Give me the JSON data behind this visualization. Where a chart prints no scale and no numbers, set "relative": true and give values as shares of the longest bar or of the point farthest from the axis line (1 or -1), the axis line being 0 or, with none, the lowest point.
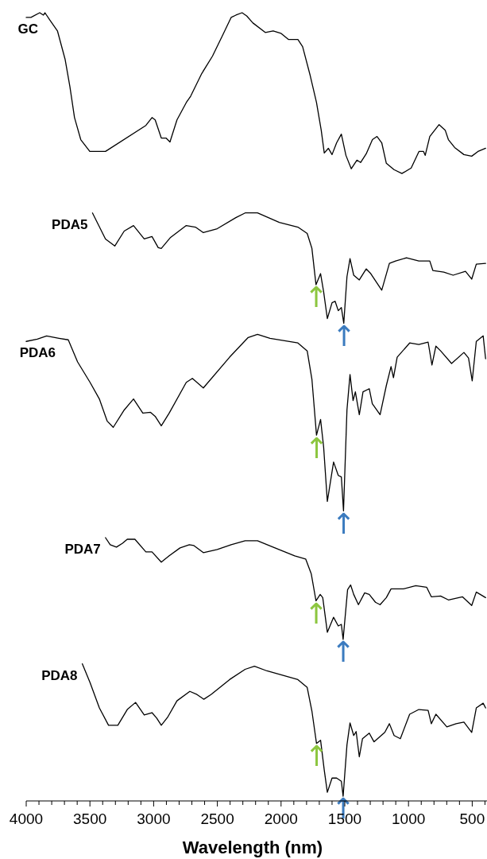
{
  "chart_data": {
    "type": "line",
    "relative": true,
    "xlabel": "Wavelength (nm)",
    "xlim": [
      4000,
      384
    ],
    "xticks": [
      4000,
      {
        "value": 3900,
        "label": null
      },
      {
        "value": 3800,
        "label": null
      },
      {
        "value": 3700,
        "label": null
      },
      {
        "value": 3600,
        "label": null
      },
      3500,
      {
        "value": 3400,
        "label": null
      },
      {
        "value": 3300,
        "label": null
      },
      {
        "value": 3200,
        "label": null
      },
      {
        "value": 3100,
        "label": null
      },
      3000,
      {
        "value": 2900,
        "label": null
      },
      {
        "value": 2800,
        "label": null
      },
      {
        "value": 2700,
        "label": null
      },
      {
        "value": 2600,
        "label": null
      },
      2500,
      {
        "value": 2400,
        "label": null
      },
      {
        "value": 2300,
        "label": null
      },
      {
        "value": 2200,
        "label": null
      },
      {
        "value": 2100,
        "label": null
      },
      2000,
      {
        "value": 1900,
        "label": null
      },
      {
        "value": 1800,
        "label": null
      },
      {
        "value": 1700,
        "label": null
      },
      {
        "value": 1600,
        "label": null
      },
      1500,
      {
        "value": 1400,
        "label": null
      },
      {
        "value": 1300,
        "label": null
      },
      {
        "value": 1200,
        "label": null
      },
      {
        "value": 1100,
        "label": null
      },
      1000,
      {
        "value": 900,
        "label": null
      },
      {
        "value": 800,
        "label": null
      },
      {
        "value": 700,
        "label": null
      },
      {
        "value": 600,
        "label": null
      },
      500,
      {
        "value": 400,
        "label": null
      }
    ],
    "legend": false,
    "line_style": "solid",
    "marker": "none",
    "series": [
      {
        "name": "GC",
        "color": "#000000",
        "x": [
          4000,
          3963,
          3894,
          3865,
          3853,
          3816,
          3755,
          3695,
          3657,
          3621,
          3572,
          3501,
          3378,
          3061,
          3013,
          2988,
          2940,
          2903,
          2872,
          2817,
          2744,
          2710,
          2622,
          2538,
          2454,
          2392,
          2354,
          2306,
          2270,
          2221,
          2124,
          2062,
          2002,
          1941,
          1868,
          1831,
          1771,
          1722,
          1685,
          1661,
          1629,
          1600,
          1564,
          1527,
          1491,
          1449,
          1405,
          1376,
          1332,
          1283,
          1247,
          1210,
          1174,
          1114,
          1052,
          979,
          918,
          882,
          869,
          833,
          760,
          712,
          687,
          638,
          565,
          504,
          455,
          395
        ],
        "values": [
          0.994,
          0.994,
          1.0,
          0.997,
          1.0,
          0.991,
          0.977,
          0.941,
          0.906,
          0.867,
          0.839,
          0.824,
          0.824,
          0.857,
          0.867,
          0.864,
          0.841,
          0.841,
          0.836,
          0.864,
          0.886,
          0.894,
          0.923,
          0.945,
          0.973,
          0.994,
          0.997,
          1.0,
          0.996,
          0.987,
          0.975,
          0.977,
          0.974,
          0.966,
          0.966,
          0.957,
          0.92,
          0.886,
          0.851,
          0.822,
          0.828,
          0.82,
          0.835,
          0.846,
          0.819,
          0.802,
          0.813,
          0.81,
          0.821,
          0.839,
          0.843,
          0.835,
          0.809,
          0.801,
          0.796,
          0.803,
          0.824,
          0.824,
          0.819,
          0.843,
          0.858,
          0.851,
          0.839,
          0.829,
          0.82,
          0.818,
          0.824,
          0.828
        ]
      },
      {
        "name": "PDA5",
        "color": "#000000",
        "x": [
          3480,
          3378,
          3305,
          3231,
          3158,
          3074,
          3013,
          2964,
          2940,
          2867,
          2744,
          2672,
          2610,
          2501,
          2355,
          2282,
          2185,
          2014,
          1868,
          1795,
          1758,
          1726,
          1690,
          1666,
          1637,
          1600,
          1576,
          1551,
          1527,
          1508,
          1483,
          1459,
          1430,
          1386,
          1332,
          1296,
          1210,
          1150,
          1101,
          1016,
          919,
          833,
          809,
          723,
          650,
          553,
          504,
          468,
          395
        ],
        "values": [
          0.746,
          0.713,
          0.704,
          0.723,
          0.73,
          0.713,
          0.716,
          0.702,
          0.701,
          0.715,
          0.73,
          0.728,
          0.721,
          0.726,
          0.74,
          0.746,
          0.746,
          0.734,
          0.728,
          0.72,
          0.701,
          0.655,
          0.669,
          0.646,
          0.612,
          0.632,
          0.634,
          0.622,
          0.626,
          0.606,
          0.665,
          0.688,
          0.667,
          0.661,
          0.675,
          0.669,
          0.648,
          0.682,
          0.685,
          0.689,
          0.685,
          0.685,
          0.673,
          0.671,
          0.667,
          0.672,
          0.662,
          0.681,
          0.682
        ]
      },
      {
        "name": "PDA6",
        "color": "#000000",
        "x": [
          4000,
          3913,
          3840,
          3743,
          3670,
          3597,
          3499,
          3426,
          3365,
          3317,
          3231,
          3158,
          3085,
          3024,
          2988,
          2940,
          2878,
          2744,
          2696,
          2610,
          2404,
          2258,
          2185,
          2087,
          1868,
          1795,
          1758,
          1722,
          1690,
          1666,
          1637,
          1588,
          1551,
          1527,
          1510,
          1483,
          1459,
          1435,
          1417,
          1386,
          1357,
          1308,
          1284,
          1223,
          1174,
          1137,
          1118,
          1089,
          991,
          919,
          846,
          816,
          785,
          748,
          662,
          565,
          529,
          500,
          468,
          414,
          395
        ],
        "values": [
          0.583,
          0.586,
          0.59,
          0.587,
          0.585,
          0.557,
          0.531,
          0.51,
          0.482,
          0.474,
          0.496,
          0.51,
          0.492,
          0.493,
          0.488,
          0.476,
          0.492,
          0.531,
          0.536,
          0.524,
          0.563,
          0.588,
          0.592,
          0.587,
          0.581,
          0.571,
          0.535,
          0.464,
          0.484,
          0.449,
          0.38,
          0.43,
          0.413,
          0.411,
          0.368,
          0.496,
          0.541,
          0.508,
          0.519,
          0.49,
          0.519,
          0.523,
          0.504,
          0.49,
          0.527,
          0.551,
          0.537,
          0.563,
          0.581,
          0.579,
          0.582,
          0.553,
          0.577,
          0.571,
          0.555,
          0.569,
          0.562,
          0.533,
          0.583,
          0.59,
          0.561
        ]
      },
      {
        "name": "PDA7",
        "color": "#000000",
        "x": [
          3378,
          3341,
          3292,
          3244,
          3207,
          3147,
          3061,
          3013,
          2940,
          2878,
          2793,
          2720,
          2684,
          2610,
          2501,
          2392,
          2282,
          2185,
          2063,
          1893,
          1807,
          1763,
          1726,
          1693,
          1673,
          1637,
          1588,
          1551,
          1527,
          1513,
          1478,
          1454,
          1430,
          1393,
          1344,
          1308,
          1259,
          1223,
          1174,
          1137,
          1040,
          943,
          857,
          821,
          748,
          687,
          577,
          504,
          468,
          395
        ],
        "values": [
          0.334,
          0.325,
          0.322,
          0.327,
          0.332,
          0.332,
          0.316,
          0.316,
          0.303,
          0.311,
          0.321,
          0.325,
          0.324,
          0.315,
          0.319,
          0.325,
          0.33,
          0.33,
          0.322,
          0.311,
          0.307,
          0.288,
          0.254,
          0.262,
          0.258,
          0.214,
          0.233,
          0.222,
          0.224,
          0.205,
          0.268,
          0.274,
          0.262,
          0.249,
          0.264,
          0.262,
          0.252,
          0.249,
          0.258,
          0.269,
          0.269,
          0.273,
          0.271,
          0.259,
          0.26,
          0.255,
          0.259,
          0.248,
          0.265,
          0.258
        ]
      },
      {
        "name": "PDA8",
        "color": "#000000",
        "x": [
          3560,
          3499,
          3426,
          3354,
          3281,
          3207,
          3142,
          3074,
          3013,
          2976,
          2940,
          2891,
          2817,
          2716,
          2660,
          2606,
          2550,
          2404,
          2282,
          2209,
          2111,
          1868,
          1795,
          1758,
          1722,
          1690,
          1661,
          1637,
          1600,
          1564,
          1527,
          1513,
          1483,
          1459,
          1430,
          1411,
          1386,
          1361,
          1308,
          1271,
          1186,
          1150,
          1113,
          1064,
          991,
          919,
          846,
          821,
          785,
          699,
          626,
          565,
          504,
          468,
          414,
          395
        ],
        "values": [
          0.174,
          0.15,
          0.118,
          0.096,
          0.096,
          0.116,
          0.125,
          0.109,
          0.112,
          0.105,
          0.096,
          0.106,
          0.127,
          0.139,
          0.135,
          0.129,
          0.135,
          0.154,
          0.167,
          0.171,
          0.165,
          0.154,
          0.144,
          0.114,
          0.073,
          0.077,
          0.039,
          0.011,
          0.029,
          0.029,
          0.025,
          0.006,
          0.071,
          0.099,
          0.083,
          0.088,
          0.056,
          0.079,
          0.086,
          0.075,
          0.087,
          0.098,
          0.083,
          0.079,
          0.11,
          0.116,
          0.115,
          0.098,
          0.11,
          0.094,
          0.098,
          0.1,
          0.087,
          0.118,
          0.124,
          0.118
        ]
      }
    ],
    "annotations": [
      {
        "text": "↑",
        "x": 1726,
        "y": 0.655
      },
      {
        "text": "↑",
        "x": 1508,
        "y": 0.606
      },
      {
        "text": "↑",
        "x": 1722,
        "y": 0.464
      },
      {
        "text": "↑",
        "x": 1510,
        "y": 0.368
      },
      {
        "text": "↑",
        "x": 1726,
        "y": 0.254
      },
      {
        "text": "↑",
        "x": 1513,
        "y": 0.205
      },
      {
        "text": "↑",
        "x": 1722,
        "y": 0.073
      },
      {
        "text": "↑",
        "x": 1513,
        "y": 0.006
      }
    ]
  }
}
